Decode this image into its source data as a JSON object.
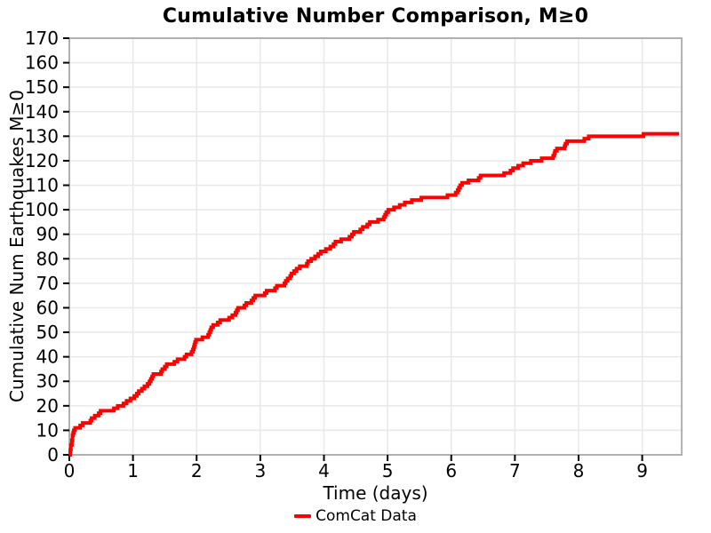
{
  "chart_data": {
    "type": "line",
    "title": "Cumulative Number Comparison, M≥0",
    "xlabel": "Time (days)",
    "ylabel": "Cumulative Num Earthquakes M≥0",
    "xlim": [
      0,
      9.62
    ],
    "ylim": [
      0,
      170
    ],
    "xticks": [
      0,
      1,
      2,
      3,
      4,
      5,
      6,
      7,
      8,
      9
    ],
    "yticks": [
      0,
      10,
      20,
      30,
      40,
      50,
      60,
      70,
      80,
      90,
      100,
      110,
      120,
      130,
      140,
      150,
      160,
      170
    ],
    "grid": true,
    "grid_color": "#e8e8e8",
    "spine_color": "#a9a9a9",
    "tick_color": "#000000",
    "legend": {
      "position": "bottom-center",
      "entries": [
        {
          "label": "ComCat Data",
          "color": "#ff0000"
        }
      ]
    },
    "series": [
      {
        "name": "ComCat Data",
        "color": "#ff0000",
        "line_width": 4,
        "step": "post",
        "points": [
          [
            0,
            0
          ],
          [
            0.015,
            2
          ],
          [
            0.025,
            4
          ],
          [
            0.04,
            6
          ],
          [
            0.05,
            8
          ],
          [
            0.06,
            9
          ],
          [
            0.07,
            10
          ],
          [
            0.09,
            11
          ],
          [
            0.17,
            12
          ],
          [
            0.21,
            13
          ],
          [
            0.33,
            14
          ],
          [
            0.35,
            15
          ],
          [
            0.4,
            16
          ],
          [
            0.46,
            17
          ],
          [
            0.49,
            18
          ],
          [
            0.7,
            19
          ],
          [
            0.76,
            20
          ],
          [
            0.85,
            21
          ],
          [
            0.9,
            22
          ],
          [
            0.96,
            23
          ],
          [
            1.02,
            24
          ],
          [
            1.06,
            25
          ],
          [
            1.09,
            26
          ],
          [
            1.14,
            27
          ],
          [
            1.18,
            28
          ],
          [
            1.23,
            29
          ],
          [
            1.26,
            30
          ],
          [
            1.28,
            31
          ],
          [
            1.3,
            32
          ],
          [
            1.32,
            33
          ],
          [
            1.44,
            34
          ],
          [
            1.46,
            35
          ],
          [
            1.5,
            36
          ],
          [
            1.53,
            37
          ],
          [
            1.65,
            38
          ],
          [
            1.7,
            39
          ],
          [
            1.81,
            40
          ],
          [
            1.84,
            41
          ],
          [
            1.92,
            42
          ],
          [
            1.94,
            43
          ],
          [
            1.955,
            44
          ],
          [
            1.965,
            45
          ],
          [
            1.975,
            46
          ],
          [
            1.99,
            47
          ],
          [
            2.09,
            48
          ],
          [
            2.18,
            49
          ],
          [
            2.2,
            50
          ],
          [
            2.215,
            51
          ],
          [
            2.23,
            52
          ],
          [
            2.26,
            53
          ],
          [
            2.33,
            54
          ],
          [
            2.37,
            55
          ],
          [
            2.51,
            56
          ],
          [
            2.56,
            57
          ],
          [
            2.61,
            58
          ],
          [
            2.63,
            59
          ],
          [
            2.65,
            60
          ],
          [
            2.75,
            61
          ],
          [
            2.78,
            62
          ],
          [
            2.86,
            63
          ],
          [
            2.89,
            64
          ],
          [
            2.92,
            65
          ],
          [
            3.07,
            66
          ],
          [
            3.1,
            67
          ],
          [
            3.23,
            68
          ],
          [
            3.26,
            69
          ],
          [
            3.38,
            70
          ],
          [
            3.4,
            71
          ],
          [
            3.43,
            72
          ],
          [
            3.47,
            73
          ],
          [
            3.49,
            74
          ],
          [
            3.53,
            75
          ],
          [
            3.57,
            76
          ],
          [
            3.62,
            77
          ],
          [
            3.73,
            78
          ],
          [
            3.75,
            79
          ],
          [
            3.8,
            80
          ],
          [
            3.86,
            81
          ],
          [
            3.91,
            82
          ],
          [
            3.95,
            83
          ],
          [
            4.03,
            84
          ],
          [
            4.1,
            85
          ],
          [
            4.15,
            86
          ],
          [
            4.18,
            87
          ],
          [
            4.27,
            88
          ],
          [
            4.4,
            89
          ],
          [
            4.44,
            90
          ],
          [
            4.47,
            91
          ],
          [
            4.57,
            92
          ],
          [
            4.61,
            93
          ],
          [
            4.68,
            94
          ],
          [
            4.72,
            95
          ],
          [
            4.85,
            96
          ],
          [
            4.94,
            97
          ],
          [
            4.96,
            98
          ],
          [
            4.98,
            99
          ],
          [
            5.01,
            100
          ],
          [
            5.1,
            101
          ],
          [
            5.19,
            102
          ],
          [
            5.27,
            103
          ],
          [
            5.38,
            104
          ],
          [
            5.53,
            105
          ],
          [
            5.94,
            106
          ],
          [
            6.07,
            107
          ],
          [
            6.1,
            108
          ],
          [
            6.12,
            109
          ],
          [
            6.14,
            110
          ],
          [
            6.17,
            111
          ],
          [
            6.27,
            112
          ],
          [
            6.43,
            113
          ],
          [
            6.46,
            114
          ],
          [
            6.83,
            115
          ],
          [
            6.93,
            116
          ],
          [
            6.97,
            117
          ],
          [
            7.05,
            118
          ],
          [
            7.13,
            119
          ],
          [
            7.25,
            120
          ],
          [
            7.42,
            121
          ],
          [
            7.6,
            122
          ],
          [
            7.62,
            123
          ],
          [
            7.63,
            124
          ],
          [
            7.66,
            125
          ],
          [
            7.78,
            126
          ],
          [
            7.795,
            127
          ],
          [
            7.82,
            128
          ],
          [
            8.09,
            129
          ],
          [
            8.16,
            130
          ],
          [
            9.02,
            131
          ],
          [
            9.58,
            131
          ]
        ]
      }
    ]
  }
}
